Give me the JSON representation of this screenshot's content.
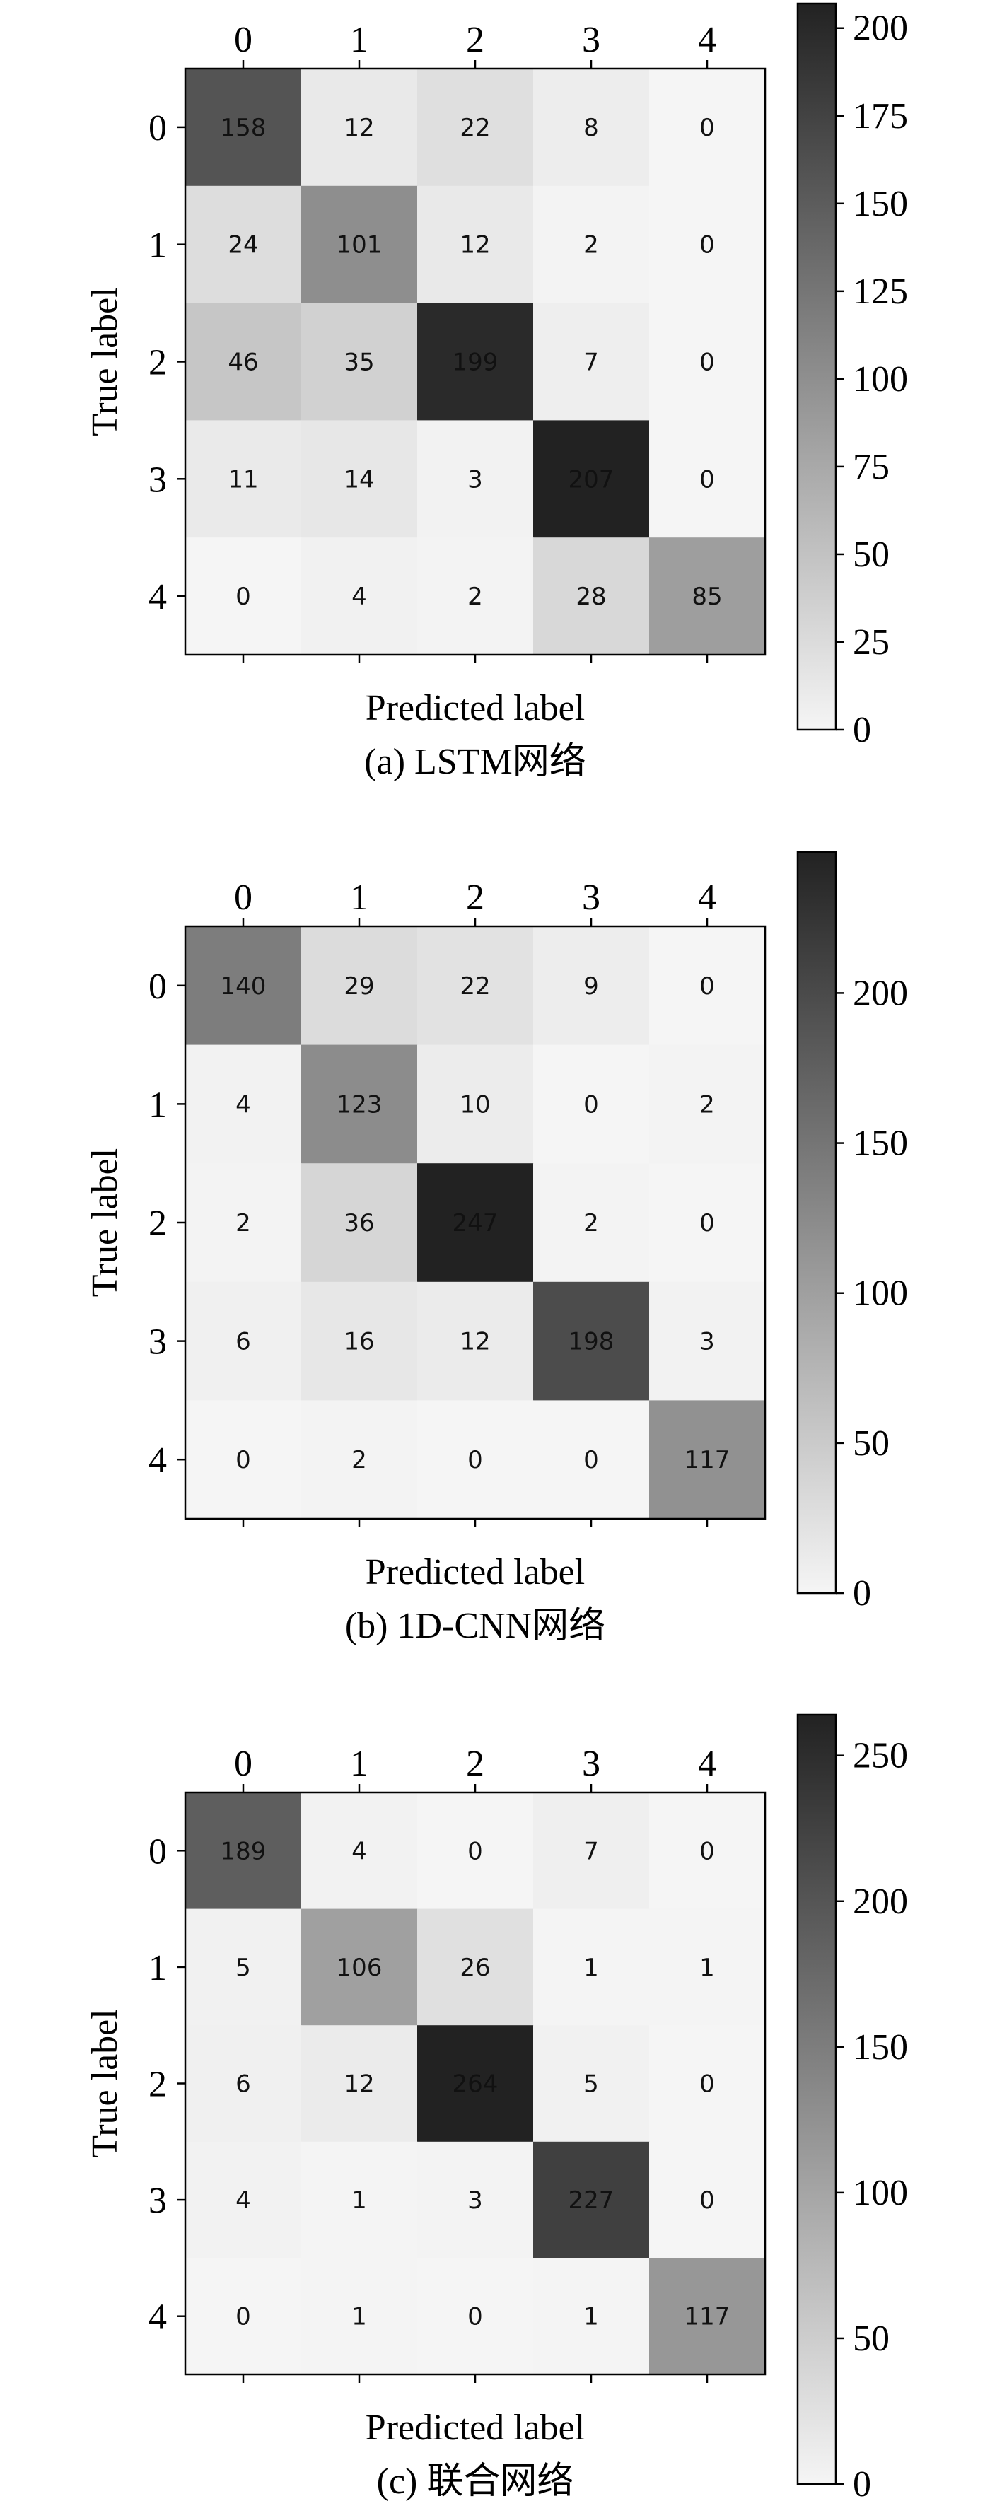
{
  "chart_data": [
    {
      "type": "heatmap",
      "caption": "(a) LSTM网络",
      "xlabel": "Predicted label",
      "ylabel": "True label",
      "x_categories": [
        "0",
        "1",
        "2",
        "3",
        "4"
      ],
      "y_categories": [
        "0",
        "1",
        "2",
        "3",
        "4"
      ],
      "values": [
        [
          158,
          12,
          22,
          8,
          0
        ],
        [
          24,
          101,
          12,
          2,
          0
        ],
        [
          46,
          35,
          199,
          7,
          0
        ],
        [
          11,
          14,
          3,
          207,
          0
        ],
        [
          0,
          4,
          2,
          28,
          85
        ]
      ],
      "colorbar": {
        "min": 0,
        "max": 207,
        "ticks": [
          0,
          25,
          50,
          75,
          100,
          125,
          150,
          175,
          200
        ]
      },
      "colormap": [
        "#f5f5f5",
        "#222222"
      ]
    },
    {
      "type": "heatmap",
      "caption": "(b) 1D-CNN网络",
      "xlabel": "Predicted label",
      "ylabel": "True label",
      "x_categories": [
        "0",
        "1",
        "2",
        "3",
        "4"
      ],
      "y_categories": [
        "0",
        "1",
        "2",
        "3",
        "4"
      ],
      "values": [
        [
          140,
          29,
          22,
          9,
          0
        ],
        [
          4,
          123,
          10,
          0,
          2
        ],
        [
          2,
          36,
          247,
          2,
          0
        ],
        [
          6,
          16,
          12,
          198,
          3
        ],
        [
          0,
          2,
          0,
          0,
          117
        ]
      ],
      "colorbar": {
        "min": 0,
        "max": 247,
        "ticks": [
          0,
          50,
          100,
          150,
          200
        ]
      },
      "colormap": [
        "#f5f5f5",
        "#222222"
      ]
    },
    {
      "type": "heatmap",
      "caption": "(c) 联合网络",
      "xlabel": "Predicted label",
      "ylabel": "True label",
      "x_categories": [
        "0",
        "1",
        "2",
        "3",
        "4"
      ],
      "y_categories": [
        "0",
        "1",
        "2",
        "3",
        "4"
      ],
      "values": [
        [
          189,
          4,
          0,
          7,
          0
        ],
        [
          5,
          106,
          26,
          1,
          1
        ],
        [
          6,
          12,
          264,
          5,
          0
        ],
        [
          4,
          1,
          3,
          227,
          0
        ],
        [
          0,
          1,
          0,
          1,
          117
        ]
      ],
      "colorbar": {
        "min": 0,
        "max": 264,
        "ticks": [
          0,
          50,
          100,
          150,
          200,
          250
        ]
      },
      "colormap": [
        "#f5f5f5",
        "#222222"
      ]
    }
  ]
}
